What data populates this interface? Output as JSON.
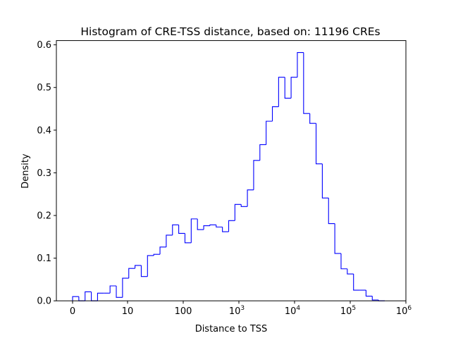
{
  "chart_data": {
    "type": "histogram",
    "title": "Histogram of CRE-TSS distance, based on: 11196 CREs",
    "xlabel": "Distance to TSS",
    "ylabel": "Density",
    "x_scale": "log-like (0 at origin, then decades)",
    "x_ticks": [
      {
        "value": 0,
        "label": "0",
        "sup": ""
      },
      {
        "value": 10,
        "label": "10",
        "sup": ""
      },
      {
        "value": 100,
        "label": "100",
        "sup": ""
      },
      {
        "value": 1000,
        "label": "10",
        "sup": "3"
      },
      {
        "value": 10000,
        "label": "10",
        "sup": "4"
      },
      {
        "value": 100000,
        "label": "10",
        "sup": "5"
      },
      {
        "value": 1000000,
        "label": "10",
        "sup": "6"
      }
    ],
    "y_ticks": [
      "0.0",
      "0.1",
      "0.2",
      "0.3",
      "0.4",
      "0.5",
      "0.6"
    ],
    "ylim": [
      0,
      0.61
    ],
    "grid": false,
    "color": "#0000ff",
    "densities": [
      0.01,
      0.0,
      0.021,
      0.0,
      0.018,
      0.018,
      0.035,
      0.008,
      0.053,
      0.076,
      0.083,
      0.057,
      0.106,
      0.109,
      0.126,
      0.154,
      0.178,
      0.158,
      0.136,
      0.192,
      0.167,
      0.176,
      0.178,
      0.173,
      0.162,
      0.188,
      0.226,
      0.221,
      0.26,
      0.329,
      0.366,
      0.421,
      0.455,
      0.524,
      0.475,
      0.524,
      0.582,
      0.439,
      0.416,
      0.321,
      0.241,
      0.181,
      0.111,
      0.075,
      0.063,
      0.025,
      0.025,
      0.011,
      0.002,
      0.0
    ]
  }
}
